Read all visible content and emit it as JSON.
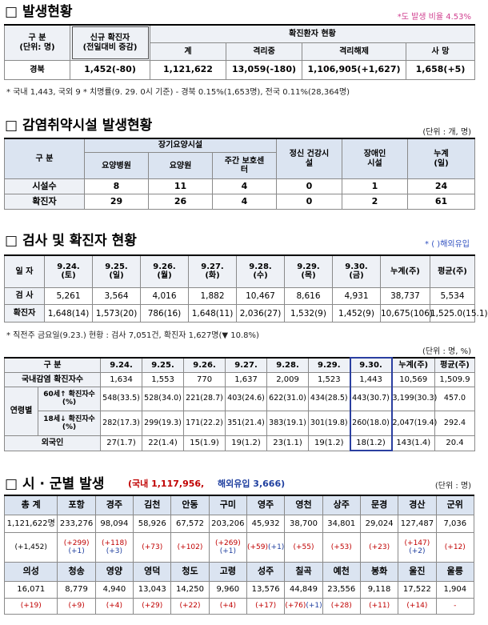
{
  "s1": {
    "title": "□ 발생현황",
    "note_right": "*도 발생 비율 4.53%",
    "table": {
      "h_group": "구 분",
      "h_unit": "(단위: 명)",
      "h_new": "신규 확진자",
      "h_new_sub": "(전일대비 증감)",
      "h_status": "확진환자 현황",
      "h_cols": [
        "계",
        "격리중",
        "격리해제",
        "사 망"
      ],
      "row": [
        "경북",
        "1,452(-80)",
        "1,121,622",
        "13,059(-180)",
        "1,106,905(+1,627)",
        "1,658(+5)"
      ]
    },
    "note": "* 국내 1,443, 국외 9    * 치명률(9. 29. 0시 기준) - 경북 0.15%(1,653명), 전국 0.11%(28,364명)"
  },
  "s2": {
    "title": "□ 감염취약시설 발생현황",
    "unit": "(단위 : 개, 명)",
    "table": {
      "h_group": "구 분",
      "h_long": "장기요양시설",
      "h_long_cols": [
        "요양병원",
        "요양원",
        "주간 보호센터"
      ],
      "h_mental": "정신 건강시설",
      "h_disabled": "장애인 시설",
      "h_total": "누계 (일)",
      "rows": [
        [
          "시설수",
          "8",
          "11",
          "4",
          "0",
          "1",
          "24"
        ],
        [
          "확진자",
          "29",
          "26",
          "4",
          "0",
          "2",
          "61"
        ]
      ]
    }
  },
  "s3": {
    "title": "□ 검사 및 확진자 현황",
    "note_right": "* ( )해외유입",
    "table": {
      "h_date": "일 자",
      "dates": [
        {
          "date": "9.24.",
          "day": "(토)"
        },
        {
          "date": "9.25.",
          "day": "(일)"
        },
        {
          "date": "9.26.",
          "day": "(월)"
        },
        {
          "date": "9.27.",
          "day": "(화)"
        },
        {
          "date": "9.28.",
          "day": "(수)"
        },
        {
          "date": "9.29.",
          "day": "(목)"
        },
        {
          "date": "9.30.",
          "day": "(금)"
        }
      ],
      "h_sum": "누계(주)",
      "h_avg": "평균(주)",
      "rows": [
        [
          "검 사",
          "5,261",
          "3,564",
          "4,016",
          "1,882",
          "10,467",
          "8,616",
          "4,931",
          "38,737",
          "5,534"
        ],
        [
          "확진자",
          "1,648(14)",
          "1,573(20)",
          "786(16)",
          "1,648(11)",
          "2,036(27)",
          "1,532(9)",
          "1,452(9)",
          "10,675(106)",
          "1,525.0(15.1)"
        ]
      ]
    },
    "note": "* 직전주 금요일(9.23.) 현황 : 검사 7,051건, 확진자 1,627명(▼ 10.8%)",
    "unit": "(단위 : 명, %)",
    "table2": {
      "h_group": "구 분",
      "dates": [
        "9.24.",
        "9.25.",
        "9.26.",
        "9.27.",
        "9.28.",
        "9.29.",
        "9.30."
      ],
      "h_sum": "누계(주)",
      "h_avg": "평균(주)",
      "domestic": {
        "label": "국내감염 확진자수",
        "values": [
          "1,634",
          "1,553",
          "770",
          "1,637",
          "2,009",
          "1,523",
          "1,443",
          "10,569",
          "1,509.9"
        ]
      },
      "age_label": "연령별",
      "age_rows": [
        {
          "label": "60세↑ 확진자수(%)",
          "values": [
            "548(33.5)",
            "528(34.0)",
            "221(28.7)",
            "403(24.6)",
            "622(31.0)",
            "434(28.5)",
            "443(30.7)",
            "3,199(30.3)",
            "457.0"
          ]
        },
        {
          "label": "18세↓ 확진자수(%)",
          "values": [
            "282(17.3)",
            "299(19.3)",
            "171(22.2)",
            "351(21.4)",
            "383(19.1)",
            "301(19.8)",
            "260(18.0)",
            "2,047(19.4)",
            "292.4"
          ]
        }
      ],
      "foreign": {
        "label": "외국인",
        "values": [
          "27(1.7)",
          "22(1.4)",
          "15(1.9)",
          "19(1.2)",
          "23(1.1)",
          "19(1.2)",
          "18(1.2)",
          "143(1.4)",
          "20.4"
        ]
      }
    }
  },
  "s4": {
    "title": "□ 시 · 군별 발생",
    "subtitle": [
      "(국내 1,117,956,",
      "해외유입 3,666)"
    ],
    "unit": "(단위 : 명)",
    "rows": [
      {
        "names": [
          "총 계",
          "포항",
          "경주",
          "김천",
          "안동",
          "구미",
          "영주",
          "영천",
          "상주",
          "문경",
          "경산",
          "군위"
        ],
        "values": [
          "1,121,622명",
          "233,276",
          "98,094",
          "58,926",
          "67,572",
          "203,206",
          "45,932",
          "38,700",
          "34,801",
          "29,024",
          "127,487",
          "7,036"
        ],
        "changes": [
          [
            "(+1,452)"
          ],
          [
            "(+299)",
            "(+1)"
          ],
          [
            "(+118)",
            "(+3)"
          ],
          [
            "(+73)"
          ],
          [
            "(+102)"
          ],
          [
            "(+269)",
            "(+1)"
          ],
          [
            "(+59)",
            "(+1)"
          ],
          [
            "(+55)"
          ],
          [
            "(+53)"
          ],
          [
            "(+23)"
          ],
          [
            "(+147)",
            "(+2)"
          ],
          [
            "(+12)"
          ]
        ]
      },
      {
        "names": [
          "의성",
          "청송",
          "영양",
          "영덕",
          "청도",
          "고령",
          "성주",
          "칠곡",
          "예천",
          "봉화",
          "울진",
          "울릉"
        ],
        "values": [
          "16,071",
          "8,779",
          "4,940",
          "13,043",
          "14,250",
          "9,960",
          "13,576",
          "44,849",
          "23,556",
          "9,118",
          "17,522",
          "1,904"
        ],
        "changes": [
          [
            "(+19)"
          ],
          [
            "(+9)"
          ],
          [
            "(+4)"
          ],
          [
            "(+29)"
          ],
          [
            "(+22)"
          ],
          [
            "(+4)"
          ],
          [
            "(+17)"
          ],
          [
            "(+76)",
            "(+1)"
          ],
          [
            "(+28)"
          ],
          [
            "(+11)"
          ],
          [
            "(+14)"
          ],
          [
            "-"
          ]
        ]
      }
    ]
  }
}
